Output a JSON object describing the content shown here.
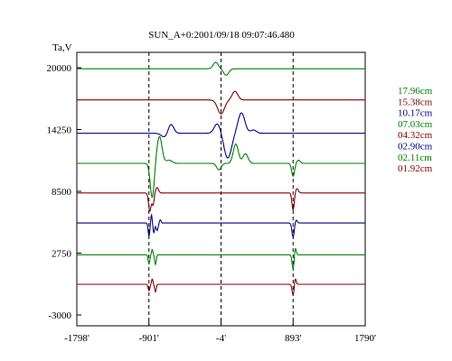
{
  "chart_data": {
    "type": "line",
    "title": "SUN_A+0:2001/09/18 09:07:46.480",
    "ylabel": "Ta,V",
    "xlabel": "",
    "xlim": [
      -1798,
      1790
    ],
    "ylim": [
      -3000,
      22000
    ],
    "x_ticks": [
      {
        "value": -1798,
        "label": "-1798'"
      },
      {
        "value": -901,
        "label": "-901'"
      },
      {
        "value": -4,
        "label": "-4'"
      },
      {
        "value": 893,
        "label": "893'"
      },
      {
        "value": 1790,
        "label": "1790'"
      }
    ],
    "y_ticks": [
      {
        "value": 20000,
        "label": "20000"
      },
      {
        "value": 14250,
        "label": "14250"
      },
      {
        "value": 8500,
        "label": "8500"
      },
      {
        "value": 2750,
        "label": "2750"
      },
      {
        "value": -3000,
        "label": "-3000"
      }
    ],
    "vlines": [
      -901,
      -4,
      893
    ],
    "grid": false,
    "legend_position": "right",
    "series": [
      {
        "name": "17.96cm",
        "color": "#008000",
        "baseline": 19900,
        "features": [
          {
            "x": -70,
            "amp": 600,
            "w": 45
          },
          {
            "x": 60,
            "amp": -600,
            "w": 45
          }
        ]
      },
      {
        "name": "15.38cm",
        "color": "#800000",
        "baseline": 17000,
        "features": [
          {
            "x": -4,
            "amp": -1300,
            "w": 60
          },
          {
            "x": 170,
            "amp": 800,
            "w": 50
          }
        ]
      },
      {
        "name": "10.17cm",
        "color": "#000080",
        "baseline": 13900,
        "features": [
          {
            "x": -700,
            "amp": -400,
            "w": 60
          },
          {
            "x": -630,
            "amp": 900,
            "w": 50
          },
          {
            "x": -50,
            "amp": 900,
            "w": 55
          },
          {
            "x": 80,
            "amp": -2300,
            "w": 65
          },
          {
            "x": 250,
            "amp": 1900,
            "w": 60
          },
          {
            "x": 400,
            "amp": 300,
            "w": 50
          }
        ]
      },
      {
        "name": "07.03cm",
        "color": "#008000",
        "baseline": 11100,
        "features": [
          {
            "x": -860,
            "amp": -3200,
            "w": 35
          },
          {
            "x": -770,
            "amp": 2500,
            "w": 45
          },
          {
            "x": -650,
            "amp": 300,
            "w": 50
          },
          {
            "x": -30,
            "amp": -600,
            "w": 40
          },
          {
            "x": 180,
            "amp": 1800,
            "w": 45
          },
          {
            "x": 300,
            "amp": 900,
            "w": 45
          },
          {
            "x": 893,
            "amp": -1200,
            "w": 25
          },
          {
            "x": 960,
            "amp": 300,
            "w": 30
          }
        ]
      },
      {
        "name": "04.32cm",
        "color": "#800000",
        "baseline": 8350,
        "features": [
          {
            "x": -890,
            "amp": -1700,
            "w": 22
          },
          {
            "x": -850,
            "amp": -1100,
            "w": 18
          },
          {
            "x": -800,
            "amp": 500,
            "w": 25
          },
          {
            "x": 893,
            "amp": -1600,
            "w": 20
          },
          {
            "x": 940,
            "amp": 400,
            "w": 25
          }
        ]
      },
      {
        "name": "02.90cm",
        "color": "#000080",
        "baseline": 5550,
        "features": [
          {
            "x": -900,
            "amp": -1200,
            "w": 15
          },
          {
            "x": -870,
            "amp": 800,
            "w": 12
          },
          {
            "x": -840,
            "amp": -900,
            "w": 14
          },
          {
            "x": -800,
            "amp": -700,
            "w": 18
          },
          {
            "x": -760,
            "amp": 300,
            "w": 15
          },
          {
            "x": 893,
            "amp": -1300,
            "w": 20
          },
          {
            "x": 930,
            "amp": 300,
            "w": 20
          }
        ]
      },
      {
        "name": "02.11cm",
        "color": "#008000",
        "baseline": 2600,
        "features": [
          {
            "x": -900,
            "amp": -800,
            "w": 15
          },
          {
            "x": -860,
            "amp": 500,
            "w": 12
          },
          {
            "x": -820,
            "amp": -900,
            "w": 14
          },
          {
            "x": 893,
            "amp": -1300,
            "w": 18
          },
          {
            "x": 920,
            "amp": 700,
            "w": 15
          }
        ]
      },
      {
        "name": "01.92cm",
        "color": "#800000",
        "baseline": -150,
        "features": [
          {
            "x": -900,
            "amp": -600,
            "w": 15
          },
          {
            "x": -860,
            "amp": 500,
            "w": 12
          },
          {
            "x": -820,
            "amp": -700,
            "w": 14
          },
          {
            "x": 893,
            "amp": -1000,
            "w": 18
          },
          {
            "x": 920,
            "amp": 600,
            "w": 15
          }
        ]
      }
    ]
  }
}
